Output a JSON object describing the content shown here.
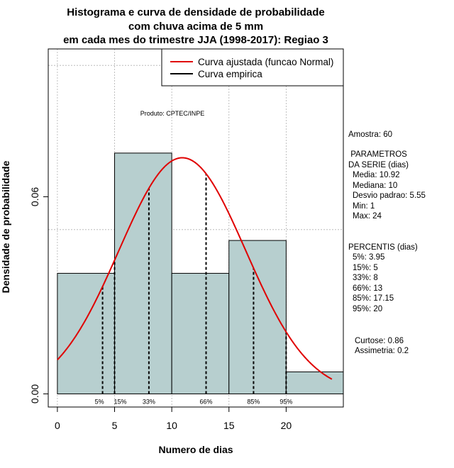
{
  "chart_data": {
    "type": "histogram",
    "title_lines": [
      "Histograma e curva de densidade de probabilidade",
      "com chuva acima de 5 mm",
      "em cada mes do trimestre JJA (1998-2017): Regiao 3"
    ],
    "xlabel": "Numero de dias",
    "ylabel": "Densidade de probabilidade",
    "xlim": [
      -0.8,
      25
    ],
    "ylim": [
      -0.004,
      0.105
    ],
    "x_ticks": [
      0,
      5,
      10,
      15,
      20
    ],
    "y_ticks": [
      0.0,
      0.06
    ],
    "y_tick_labels": [
      "0.00",
      "0.06"
    ],
    "grid_x": [
      0,
      5,
      10,
      15,
      20
    ],
    "grid_y": [
      0.1,
      0.05
    ],
    "bins": [
      {
        "from": 0,
        "to": 5,
        "density": 0.0367
      },
      {
        "from": 5,
        "to": 10,
        "density": 0.0733
      },
      {
        "from": 10,
        "to": 15,
        "density": 0.0367
      },
      {
        "from": 15,
        "to": 20,
        "density": 0.0467
      },
      {
        "from": 20,
        "to": 25,
        "density": 0.0067
      }
    ],
    "fit_curve": {
      "name": "Curva ajustada (funcao Normal)",
      "distribution": "normal",
      "mean": 10.92,
      "sd": 5.55,
      "x_from": 0,
      "x_to": 24,
      "color": "#e00000"
    },
    "empirical_curve": {
      "name": "Curva empirica",
      "color": "#000000"
    },
    "percentile_marks": [
      {
        "label": "5%",
        "x": 3.95
      },
      {
        "label": "15%",
        "x": 5
      },
      {
        "label": "33%",
        "x": 8
      },
      {
        "label": "66%",
        "x": 13
      },
      {
        "label": "85%",
        "x": 17.15
      },
      {
        "label": "95%",
        "x": 20
      }
    ],
    "legend_position": "top-right"
  },
  "annotation": "Produto: CPTEC/INPE",
  "colors": {
    "bar_fill": "#b7cfcf",
    "fit_line": "#e00000",
    "grid": "#b0b0b0"
  },
  "stats_panel": {
    "sample": "Amostra: 60",
    "params_heading": [
      " PARAMETROS",
      "DA SERIE (dias)"
    ],
    "params": [
      "Media: 10.92",
      "Mediana: 10",
      "Desvio padrao: 5.55",
      "Min: 1",
      "Max: 24"
    ],
    "percentis_heading": "PERCENTIS (dias)",
    "percentis": [
      "5%: 3.95",
      "15%: 5",
      "33%: 8",
      "66%: 13",
      "85%: 17.15",
      "95%: 20"
    ],
    "shape": [
      "Curtose: 0.86",
      "Assimetria: 0.2"
    ]
  }
}
